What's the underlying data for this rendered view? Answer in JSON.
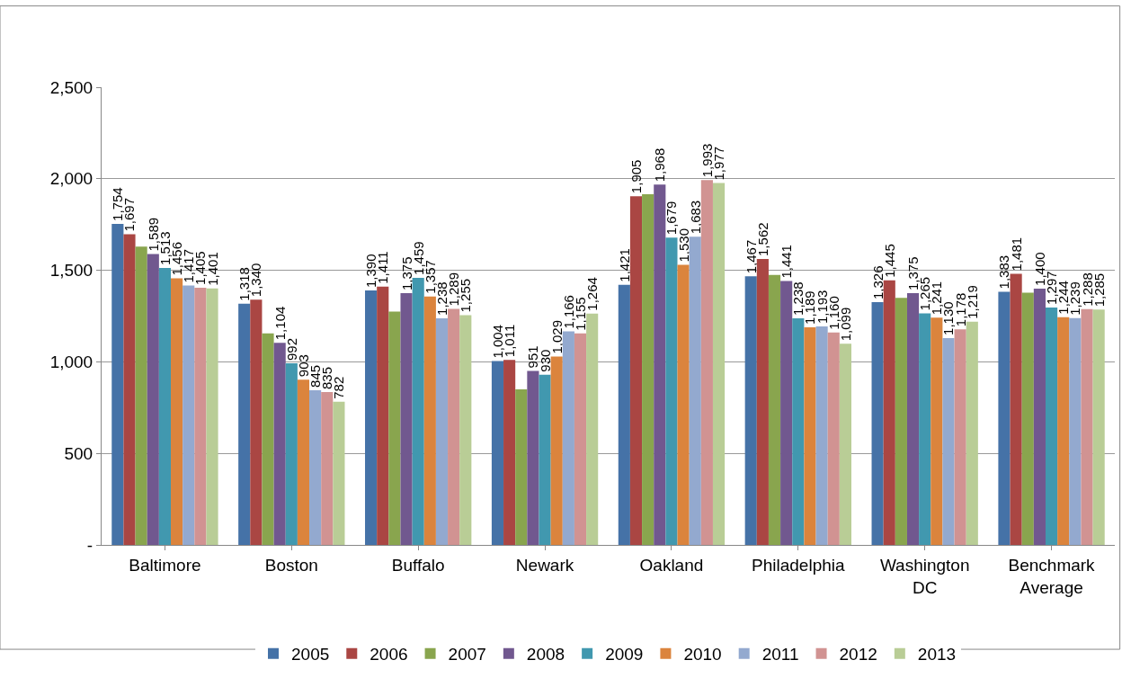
{
  "chart_data": {
    "type": "bar",
    "categories": [
      "Baltimore",
      "Boston",
      "Buffalo",
      "Newark",
      "Oakland",
      "Philadelphia",
      "Washington\nDC",
      "Benchmark\nAverage"
    ],
    "series": [
      {
        "name": "2005",
        "color": "#4572a7",
        "values": [
          1754,
          1318,
          1390,
          1004,
          1421,
          1467,
          1326,
          1383
        ],
        "value_labels": [
          "1,754",
          "1,318",
          "1,390",
          "1,004",
          "1,421",
          "1,467",
          "1,326",
          "1,383"
        ]
      },
      {
        "name": "2006",
        "color": "#aa4643",
        "values": [
          1697,
          1340,
          1411,
          1011,
          1905,
          1562,
          1445,
          1481
        ],
        "value_labels": [
          "1,697",
          "1,340",
          "1,411",
          "1,011",
          "1,905",
          "1,562",
          "1,445",
          "1,481"
        ]
      },
      {
        "name": "2007",
        "color": "#89a54e",
        "values": [
          1630,
          1155,
          1275,
          850,
          1915,
          1475,
          1350,
          1378
        ],
        "value_labels": [
          null,
          null,
          null,
          null,
          null,
          null,
          null,
          null
        ]
      },
      {
        "name": "2008",
        "color": "#71588f",
        "values": [
          1589,
          1104,
          1375,
          951,
          1968,
          1441,
          1375,
          1400
        ],
        "value_labels": [
          "1,589",
          "1,104",
          "1,375",
          "951",
          "1,968",
          "1,441",
          "1,375",
          "1,400"
        ]
      },
      {
        "name": "2009",
        "color": "#4198af",
        "values": [
          1513,
          992,
          1459,
          930,
          1679,
          1238,
          1265,
          1297
        ],
        "value_labels": [
          "1,513",
          "992",
          "1,459",
          "930",
          "1,679",
          "1,238",
          "1,265",
          "1,297"
        ]
      },
      {
        "name": "2010",
        "color": "#db843d",
        "values": [
          1456,
          903,
          1357,
          1029,
          1530,
          1189,
          1241,
          1244
        ],
        "value_labels": [
          "1,456",
          "903",
          "1,357",
          "1,029",
          "1,530",
          "1,189",
          "1,241",
          "1,244"
        ]
      },
      {
        "name": "2011",
        "color": "#93a9cf",
        "values": [
          1417,
          845,
          1238,
          1166,
          1683,
          1193,
          1130,
          1239
        ],
        "value_labels": [
          "1,417",
          "845",
          "1,238",
          "1,166",
          "1,683",
          "1,193",
          "1,130",
          "1,239"
        ]
      },
      {
        "name": "2012",
        "color": "#d19392",
        "values": [
          1405,
          835,
          1289,
          1155,
          1993,
          1160,
          1178,
          1288
        ],
        "value_labels": [
          "1,405",
          "835",
          "1,289",
          "1,155",
          "1,993",
          "1,160",
          "1,178",
          "1,288"
        ]
      },
      {
        "name": "2013",
        "color": "#b9cd96",
        "values": [
          1401,
          782,
          1255,
          1264,
          1977,
          1099,
          1219,
          1285
        ],
        "value_labels": [
          "1,401",
          "782",
          "1,255",
          "1,264",
          "1,977",
          "1,099",
          "1,219",
          "1,285"
        ]
      }
    ],
    "ylim": [
      0,
      2500
    ],
    "yticks": [
      {
        "value": 0,
        "label": "-"
      },
      {
        "value": 500,
        "label": "500"
      },
      {
        "value": 1000,
        "label": "1,000"
      },
      {
        "value": 1500,
        "label": "1,500"
      },
      {
        "value": 2000,
        "label": "2,000"
      },
      {
        "value": 2500,
        "label": "2,500"
      }
    ],
    "grid": "y",
    "legend": "bottom"
  }
}
